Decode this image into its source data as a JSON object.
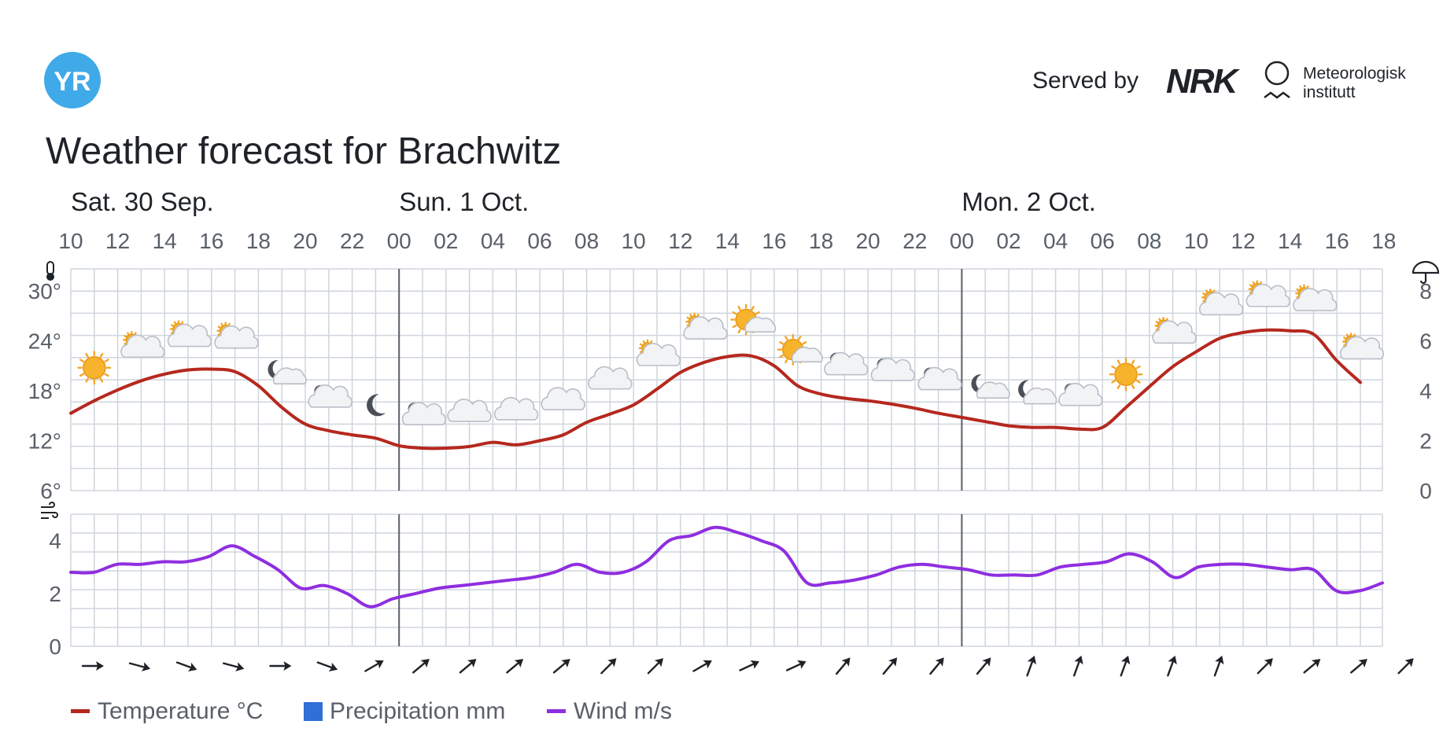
{
  "header": {
    "logo_text": "YR",
    "served_by": "Served by",
    "partner_nrk": "NRK",
    "partner_met_line1": "Meteorologisk",
    "partner_met_line2": "institutt",
    "title": "Weather forecast for Brachwitz"
  },
  "legend": {
    "temperature": "Temperature °C",
    "precipitation": "Precipitation mm",
    "wind": "Wind m/s"
  },
  "colors": {
    "temperature": "#b5281e",
    "precipitation": "#2f6fd6",
    "wind": "#8f2ee0",
    "grid": "#cfd5dd",
    "day_divider": "#5a6068",
    "logo": "#40a9e8"
  },
  "chart_data": [
    {
      "type": "line",
      "name": "temperature-precipitation",
      "day_labels": [
        {
          "label": "Sat. 30 Sep.",
          "hour_index": 0
        },
        {
          "label": "Sun. 1 Oct.",
          "hour_index": 14
        },
        {
          "label": "Mon. 2 Oct.",
          "hour_index": 38
        }
      ],
      "x_tick_labels": [
        "10",
        "12",
        "14",
        "16",
        "18",
        "20",
        "22",
        "00",
        "02",
        "04",
        "06",
        "08",
        "10",
        "12",
        "14",
        "16",
        "18",
        "20",
        "22",
        "00",
        "02",
        "04",
        "06",
        "08",
        "10",
        "12",
        "14",
        "16",
        "18"
      ],
      "y_left_ticks": [
        "30°",
        "24°",
        "18°",
        "12°",
        "6°"
      ],
      "y_left_values": [
        30,
        24,
        18,
        12,
        6
      ],
      "ylim_left": [
        6,
        30
      ],
      "y_right_ticks": [
        "8",
        "6",
        "4",
        "2",
        "0"
      ],
      "y_right_values": [
        8,
        6,
        4,
        2,
        0
      ],
      "ylim_right": [
        0,
        8
      ],
      "icons": [
        "thermometer-icon",
        "umbrella-icon"
      ],
      "series": [
        {
          "name": "Temperature °C",
          "values": [
            15.3,
            16.8,
            18.1,
            19.2,
            20.0,
            20.5,
            20.6,
            20.3,
            18.6,
            16.0,
            14.0,
            13.2,
            12.7,
            12.3,
            11.4,
            11.1,
            11.1,
            11.3,
            11.8,
            11.5,
            12.0,
            12.7,
            14.2,
            15.2,
            16.3,
            18.2,
            20.2,
            21.4,
            22.1,
            22.2,
            21.0,
            18.6,
            17.6,
            17.1,
            16.8,
            16.4,
            15.9,
            15.3,
            14.8,
            14.3,
            13.8,
            13.6,
            13.6,
            13.4,
            13.6,
            16.0,
            18.5,
            20.9,
            22.7,
            24.3,
            25.0,
            25.3,
            25.2,
            24.8,
            21.6,
            19.0
          ]
        },
        {
          "name": "Precipitation mm",
          "values": []
        }
      ],
      "weather_symbols": [
        {
          "hour_index": 1,
          "symbol": "clear-sky-day"
        },
        {
          "hour_index": 3,
          "symbol": "fair-day"
        },
        {
          "hour_index": 5,
          "symbol": "fair-day"
        },
        {
          "hour_index": 7,
          "symbol": "fair-day"
        },
        {
          "hour_index": 9,
          "symbol": "partly-cloudy-night"
        },
        {
          "hour_index": 11,
          "symbol": "fair-night"
        },
        {
          "hour_index": 13,
          "symbol": "clear-sky-night"
        },
        {
          "hour_index": 15,
          "symbol": "fair-night"
        },
        {
          "hour_index": 17,
          "symbol": "cloudy"
        },
        {
          "hour_index": 19,
          "symbol": "cloudy"
        },
        {
          "hour_index": 21,
          "symbol": "cloudy"
        },
        {
          "hour_index": 23,
          "symbol": "cloudy"
        },
        {
          "hour_index": 25,
          "symbol": "fair-day"
        },
        {
          "hour_index": 27,
          "symbol": "fair-day"
        },
        {
          "hour_index": 29,
          "symbol": "partly-cloudy-day"
        },
        {
          "hour_index": 31,
          "symbol": "partly-cloudy-day"
        },
        {
          "hour_index": 33,
          "symbol": "fair-night"
        },
        {
          "hour_index": 35,
          "symbol": "fair-night"
        },
        {
          "hour_index": 37,
          "symbol": "fair-night"
        },
        {
          "hour_index": 39,
          "symbol": "partly-cloudy-night"
        },
        {
          "hour_index": 41,
          "symbol": "partly-cloudy-night"
        },
        {
          "hour_index": 43,
          "symbol": "fair-night"
        },
        {
          "hour_index": 45,
          "symbol": "clear-sky-day"
        },
        {
          "hour_index": 47,
          "symbol": "fair-day"
        },
        {
          "hour_index": 49,
          "symbol": "fair-day"
        },
        {
          "hour_index": 51,
          "symbol": "fair-day"
        },
        {
          "hour_index": 53,
          "symbol": "fair-day"
        },
        {
          "hour_index": 55,
          "symbol": "fair-day"
        }
      ]
    },
    {
      "type": "line",
      "name": "wind",
      "y_ticks": [
        "4",
        "2",
        "0"
      ],
      "y_values": [
        4,
        2,
        0
      ],
      "ylim": [
        0,
        5
      ],
      "icons": [
        "wind-icon"
      ],
      "series": [
        {
          "name": "Wind m/s",
          "values": [
            2.8,
            2.8,
            3.1,
            3.1,
            3.2,
            3.2,
            3.4,
            3.8,
            3.4,
            2.9,
            2.2,
            2.3,
            2.0,
            1.5,
            1.8,
            2.0,
            2.2,
            2.3,
            2.4,
            2.5,
            2.6,
            2.8,
            3.1,
            2.8,
            2.8,
            3.2,
            4.0,
            4.2,
            4.5,
            4.3,
            4.0,
            3.6,
            2.4,
            2.4,
            2.5,
            2.7,
            3.0,
            3.1,
            3.0,
            2.9,
            2.7,
            2.7,
            2.7,
            3.0,
            3.1,
            3.2,
            3.5,
            3.2,
            2.6,
            3.0,
            3.1,
            3.1,
            3.0,
            2.9,
            2.9,
            2.1,
            2.1,
            2.4
          ]
        }
      ],
      "wind_direction_deg": [
        270,
        285,
        290,
        285,
        270,
        290,
        240,
        230,
        230,
        230,
        230,
        225,
        225,
        240,
        245,
        245,
        220,
        220,
        220,
        220,
        200,
        200,
        200,
        200,
        200,
        225,
        230,
        230,
        225,
        200
      ]
    }
  ]
}
